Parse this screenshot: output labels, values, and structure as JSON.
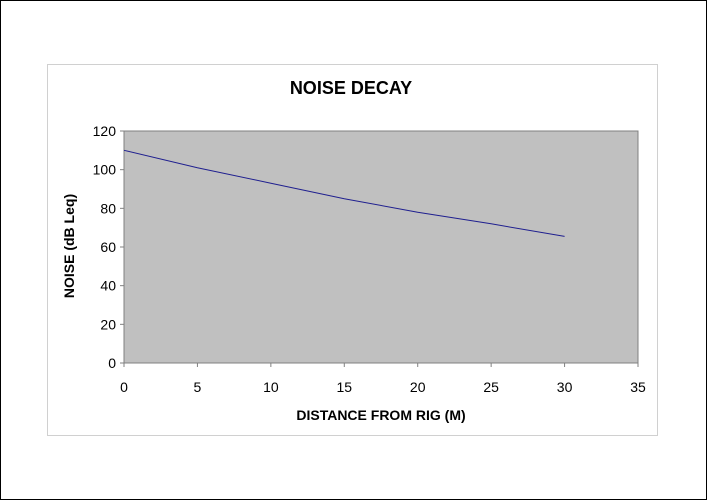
{
  "chart_data": {
    "type": "line",
    "title": "NOISE DECAY",
    "xlabel": "DISTANCE FROM RIG (M)",
    "ylabel": "NOISE (dB Leq)",
    "xlim": [
      0,
      35
    ],
    "ylim": [
      0,
      120
    ],
    "x_ticks": [
      0,
      5,
      10,
      15,
      20,
      25,
      30,
      35
    ],
    "y_ticks": [
      0,
      20,
      40,
      60,
      80,
      100,
      120
    ],
    "grid": false,
    "legend": "none",
    "series": [
      {
        "x": [
          0,
          5,
          10,
          15,
          20,
          25,
          30
        ],
        "values": [
          110,
          101,
          93,
          85,
          78,
          72,
          65.5
        ]
      }
    ]
  },
  "colors": {
    "plot_background": "#c0c0c0",
    "line": "#1f1f8f",
    "axis": "#808080"
  }
}
